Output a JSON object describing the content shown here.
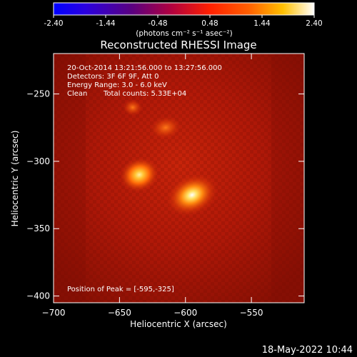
{
  "colorbar": {
    "ticks": [
      "-2.40",
      "-1.44",
      "-0.48",
      "0.48",
      "1.44",
      "2.40"
    ],
    "unit_label": "(photons cm⁻² s⁻¹ asec⁻²)"
  },
  "info": {
    "time_range": "20-Oct-2014 13:21:56.000 to 13:27:56.000",
    "detectors": "Detectors: 3F 6F 9F, Att 0",
    "energy": "Energy Range: 3.0 - 6.0 keV",
    "algorithm": "Clean",
    "total_counts": "Total counts: 5.33E+04",
    "peak": "Position of Peak = [-595,-325]"
  },
  "footer": {
    "timestamp": "18-May-2022 10:44"
  },
  "colors": {
    "background": "#000000",
    "text": "#ffffff"
  },
  "chart_data": {
    "type": "heatmap",
    "title": "Reconstructed RHESSI Image",
    "xlabel": "Heliocentric X (arcsec)",
    "ylabel": "Heliocentric Y (arcsec)",
    "xlim": [
      -700,
      -510
    ],
    "ylim": [
      -405,
      -220
    ],
    "colormap": "red-temperature (blue to white)",
    "color_range": [
      -2.4,
      2.4
    ],
    "x_ticks": [
      -700,
      -650,
      -600,
      -550
    ],
    "y_ticks": [
      -250,
      -300,
      -350,
      -400
    ],
    "x_tick_labels": [
      "−700",
      "−650",
      "−600",
      "−550"
    ],
    "y_tick_labels": [
      "−250",
      "−300",
      "−350",
      "−400"
    ],
    "sources": [
      {
        "x": -595,
        "y": -325,
        "peak": 2.4
      },
      {
        "x": -635,
        "y": -310,
        "peak": 1.9
      },
      {
        "x": -615,
        "y": -275,
        "peak": 1.2
      },
      {
        "x": -640,
        "y": -260,
        "peak": 0.8
      }
    ],
    "peak_position": [
      -595,
      -325
    ]
  }
}
